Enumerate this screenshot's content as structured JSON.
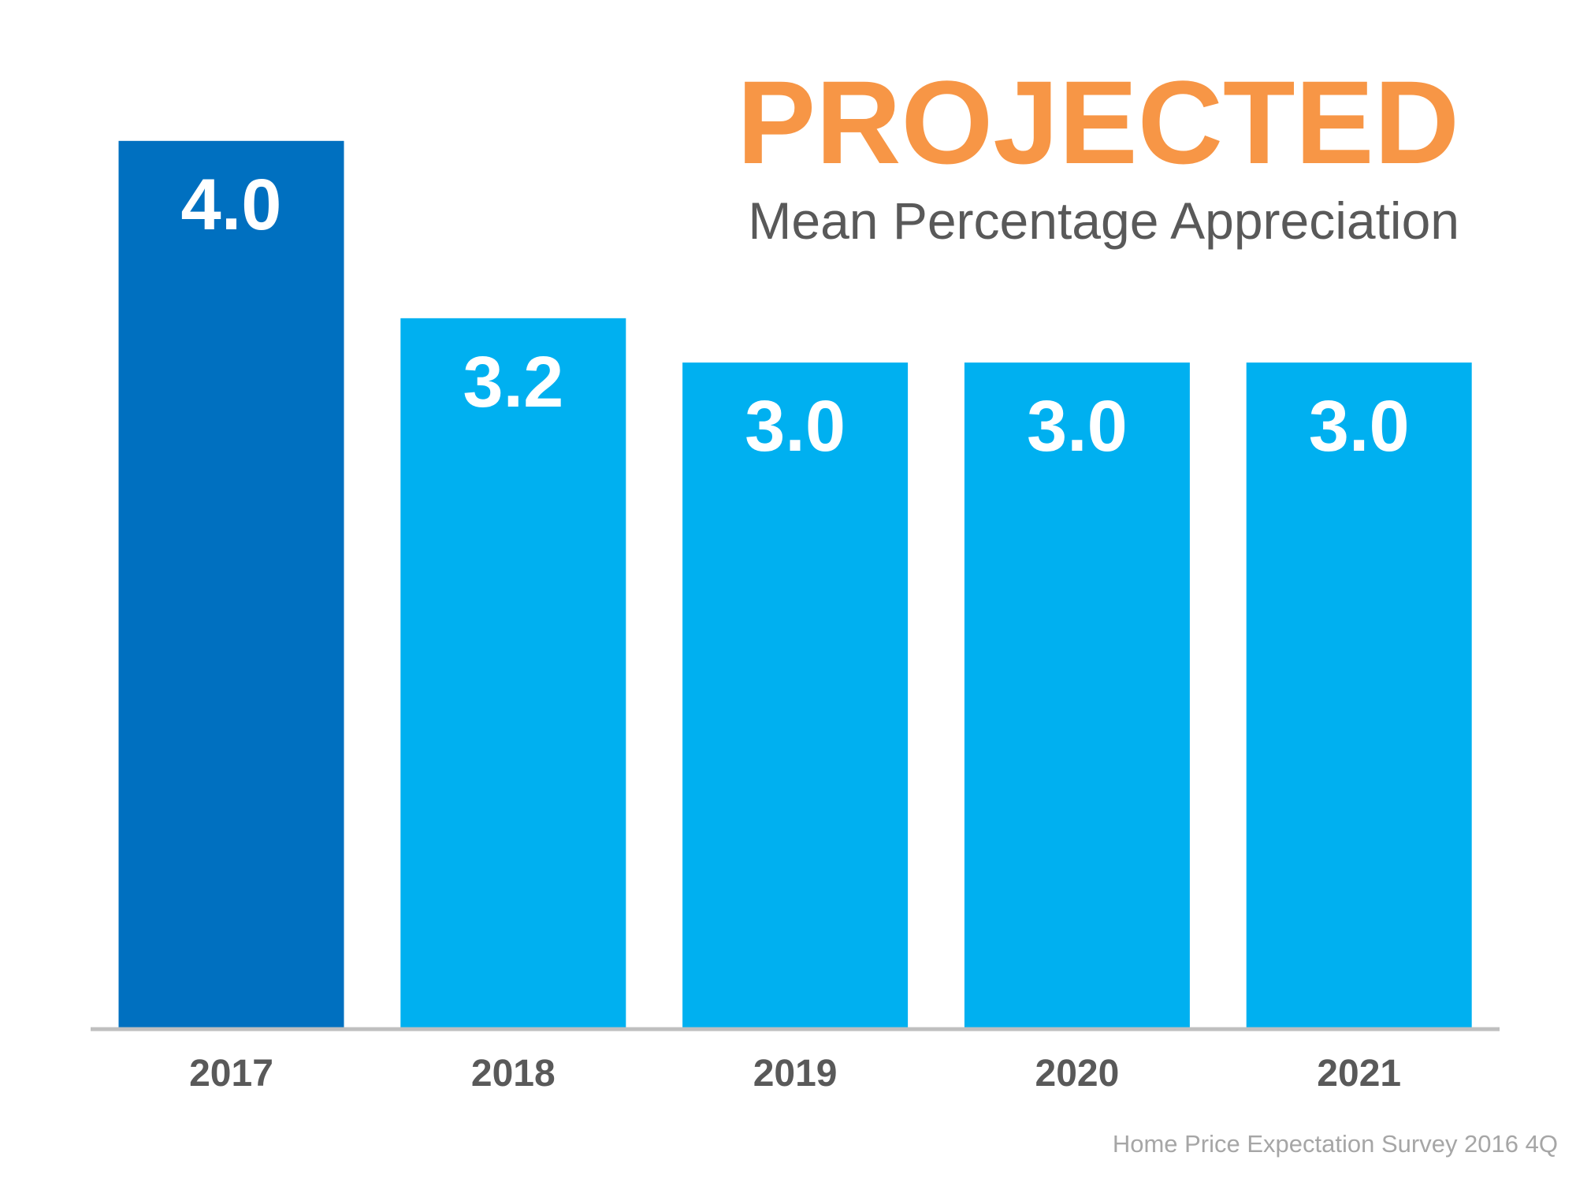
{
  "chart_data": {
    "type": "bar",
    "title": "PROJECTED",
    "subtitle": "Mean Percentage Appreciation",
    "categories": [
      "2017",
      "2018",
      "2019",
      "2020",
      "2021"
    ],
    "values": [
      4.0,
      3.2,
      3.0,
      3.0,
      3.0
    ],
    "value_labels": [
      "4.0",
      "3.2",
      "3.0",
      "3.0",
      "3.0"
    ],
    "colors": [
      "#0070c0",
      "#00b0f0",
      "#00b0f0",
      "#00b0f0",
      "#00b0f0"
    ],
    "source": "Home Price Expectation Survey 2016 4Q"
  }
}
